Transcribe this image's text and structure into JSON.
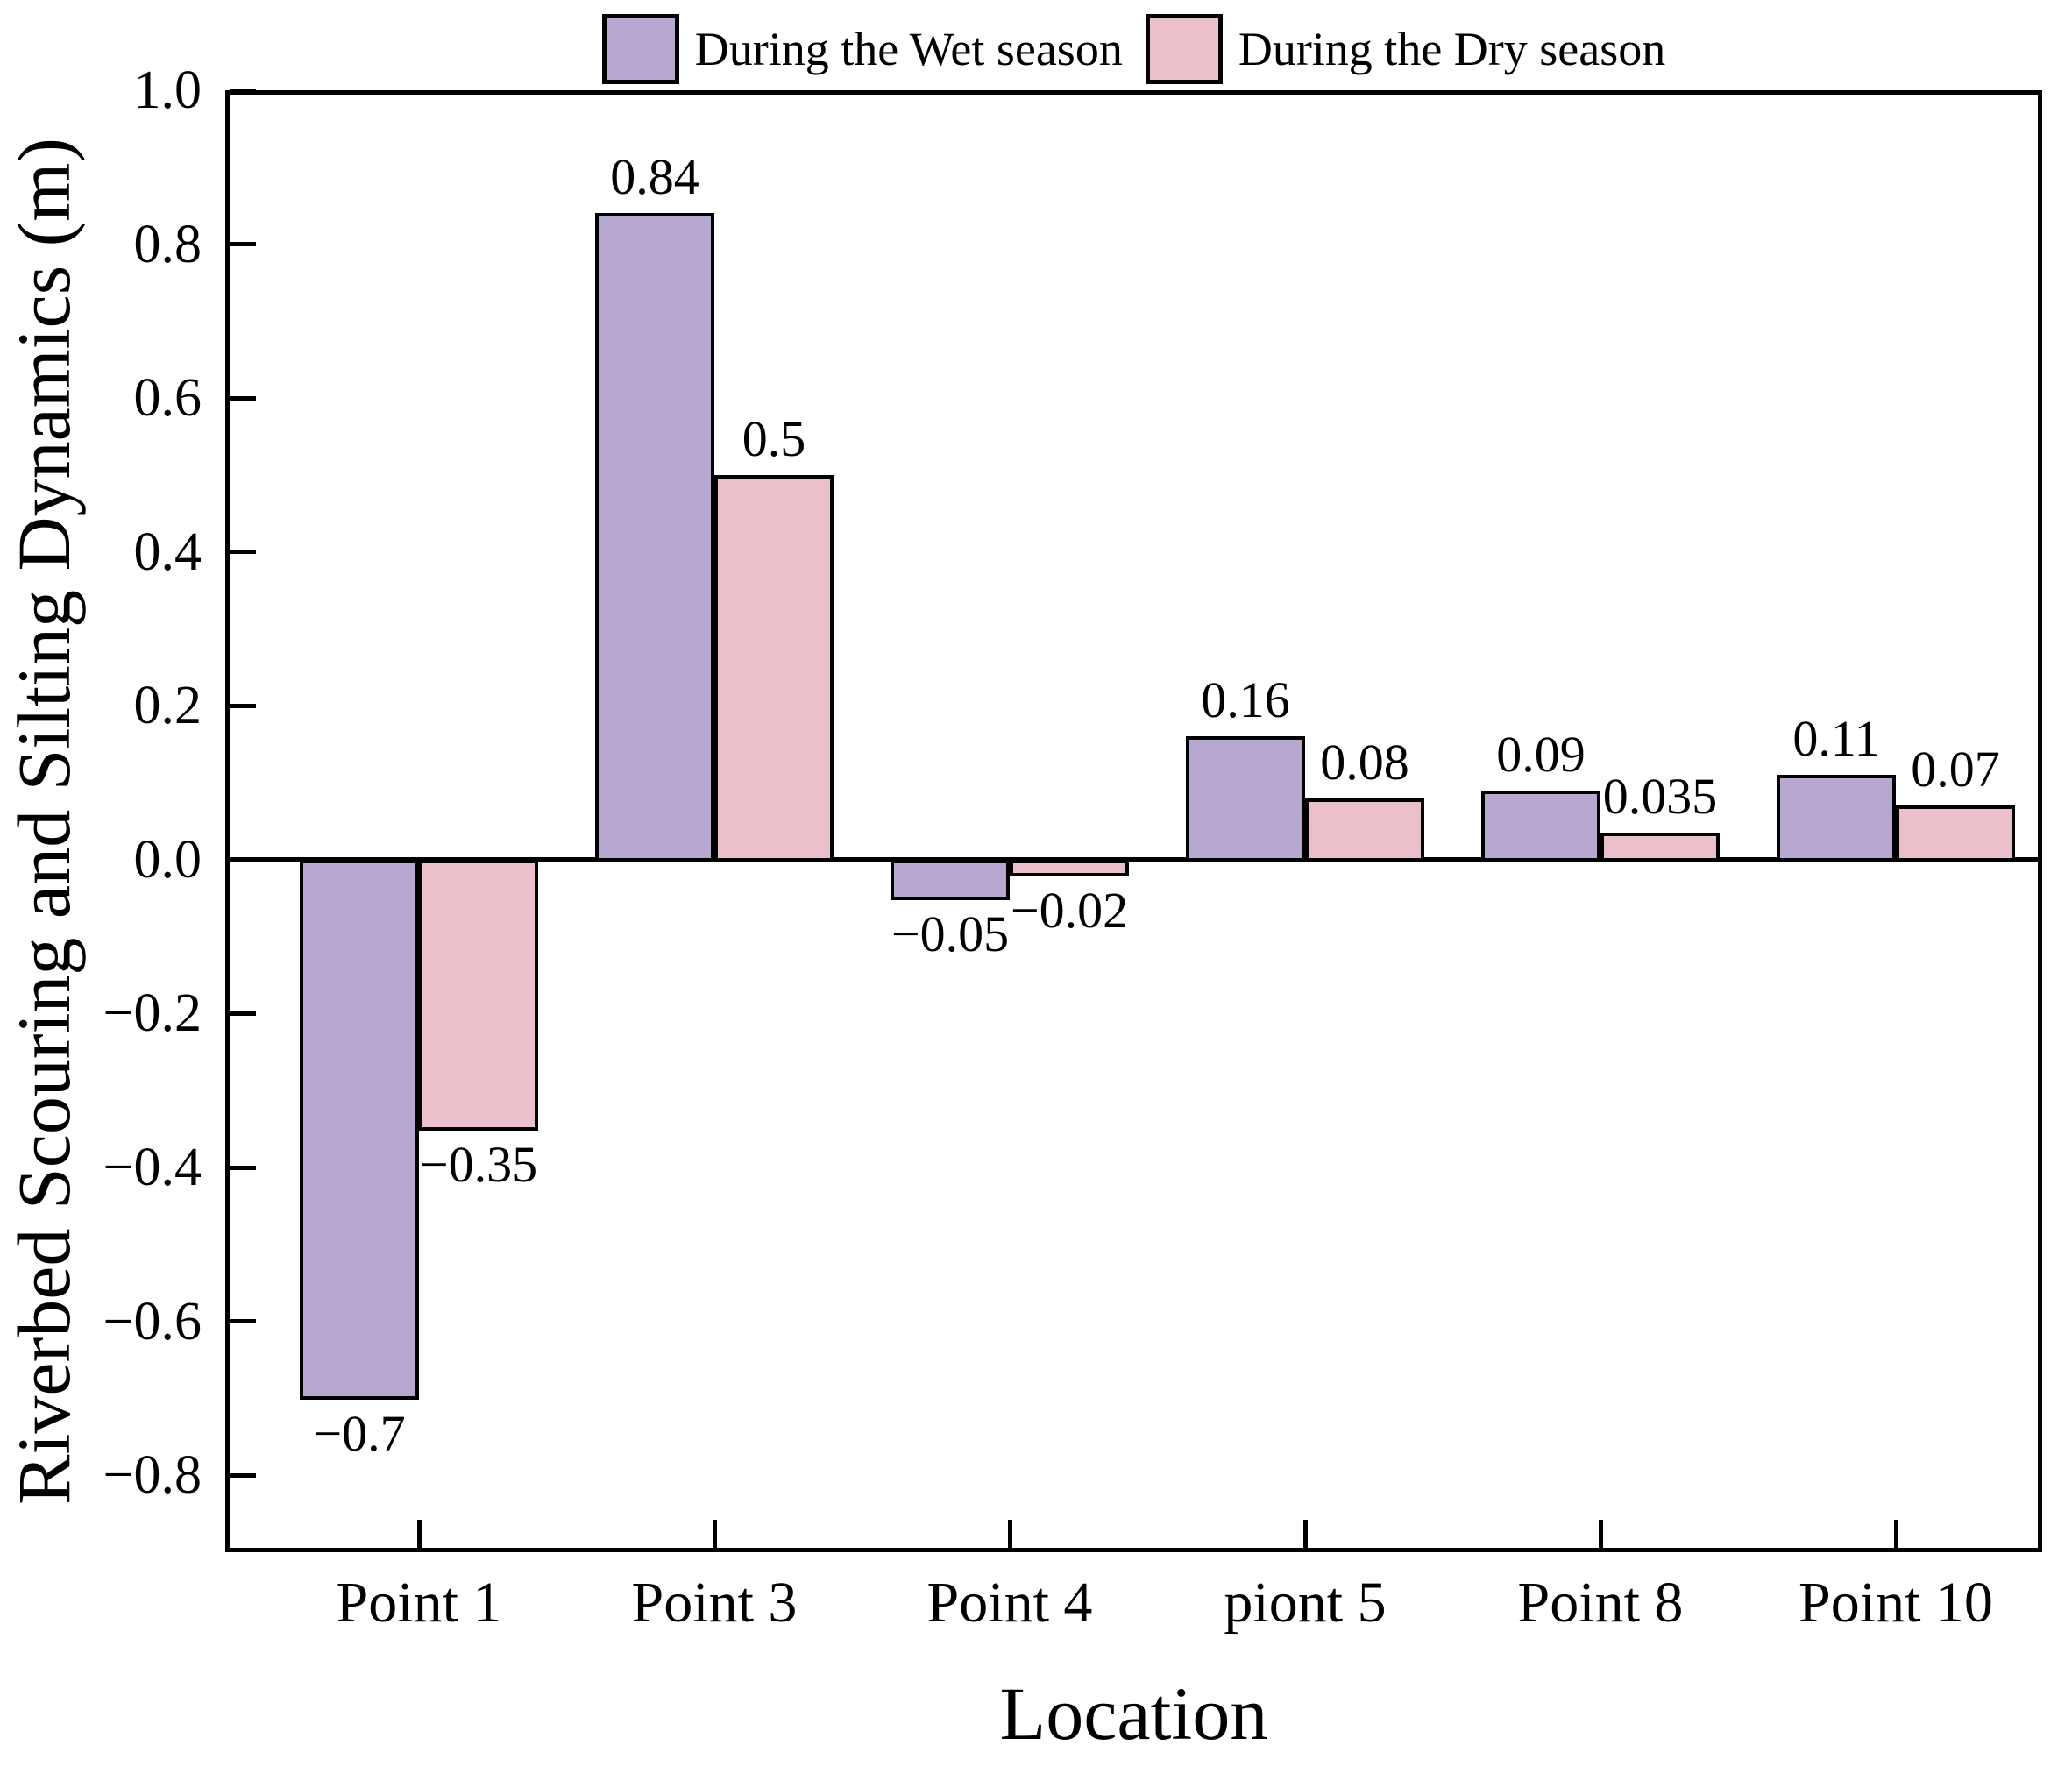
{
  "colors": {
    "wet_fill": "#b6a8d1",
    "dry_fill": "#ecc0cb",
    "axis": "#000000",
    "background": "#ffffff"
  },
  "chart_data": {
    "type": "bar",
    "title": "",
    "xlabel": "Location",
    "ylabel": "Riverbed Scouring and Silting Dynamics (m)",
    "categories": [
      "Point 1",
      "Point 3",
      "Point 4",
      "piont 5",
      "Point 8",
      "Point 10"
    ],
    "series": [
      {
        "name": "During the Wet season",
        "color": "#b6a8d1",
        "values": [
          -0.7,
          0.84,
          -0.05,
          0.16,
          0.09,
          0.11
        ],
        "labels": [
          "−0.7",
          "0.84",
          "−0.05",
          "0.16",
          "0.09",
          "0.11"
        ]
      },
      {
        "name": "During the Dry season",
        "color": "#ecc0cb",
        "values": [
          -0.35,
          0.5,
          -0.02,
          0.08,
          0.035,
          0.07
        ],
        "labels": [
          "−0.35",
          "0.5",
          "−0.02",
          "0.08",
          "0.035",
          "0.07"
        ]
      }
    ],
    "ylim": [
      -0.9,
      1.0
    ],
    "y_ticks": [
      {
        "value": 1.0,
        "label": "1.0"
      },
      {
        "value": 0.8,
        "label": "0.8"
      },
      {
        "value": 0.6,
        "label": "0.6"
      },
      {
        "value": 0.4,
        "label": "0.4"
      },
      {
        "value": 0.2,
        "label": "0.2"
      },
      {
        "value": 0.0,
        "label": "0.0"
      },
      {
        "value": -0.2,
        "label": "−0.2"
      },
      {
        "value": -0.4,
        "label": "−0.4"
      },
      {
        "value": -0.6,
        "label": "−0.6"
      },
      {
        "value": -0.8,
        "label": "−0.8"
      }
    ],
    "grid": false,
    "legend_position": "top-center"
  }
}
